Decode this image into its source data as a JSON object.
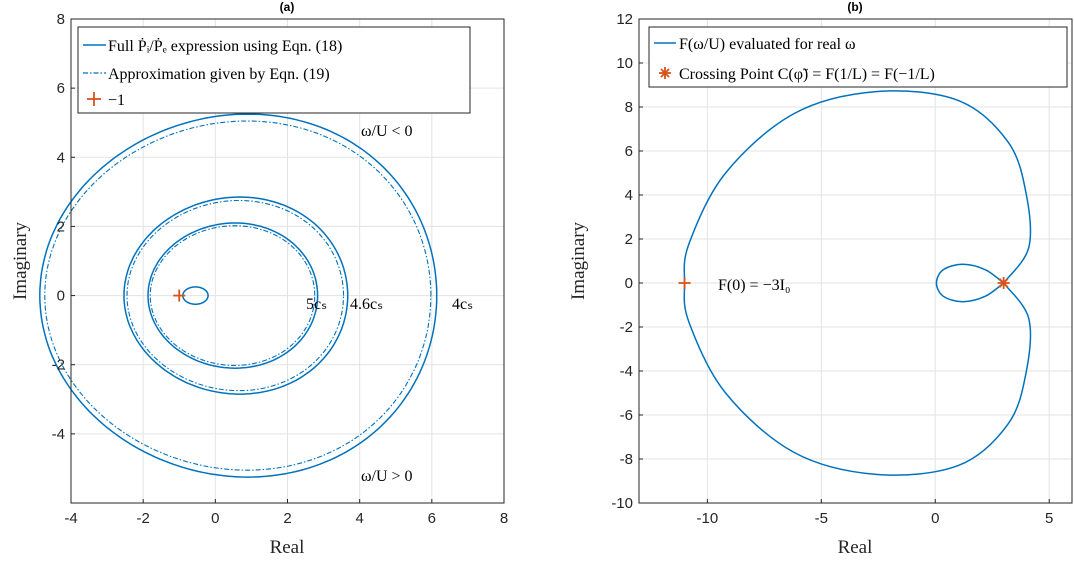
{
  "colors": {
    "curve": "#0072BD",
    "marker": "#D95319"
  },
  "chart_data": [
    {
      "panel_title": "(a)",
      "type": "line",
      "xlabel": "Real",
      "ylabel": "Imaginary",
      "xlim": [
        -4,
        8
      ],
      "ylim": [
        -6,
        8
      ],
      "xticks": [
        "-4",
        "-2",
        "0",
        "2",
        "4",
        "6",
        "8"
      ],
      "yticks": [
        "-4",
        "-2",
        "0",
        "2",
        "4",
        "6",
        "8"
      ],
      "grid": true,
      "legend": {
        "placement": "top-left",
        "entries": [
          "Full Ṗᵢ/Ṗₑ expression using Eqn. (18)",
          "Approximation given by Eqn. (19)",
          "−1"
        ]
      },
      "series": [
        {
          "style": "solid",
          "curves": [
            {
              "center": [
                0.9,
                0
              ],
              "radius_x": 5.5,
              "radius_y": 5.25,
              "shift": 0.6
            },
            {
              "center": [
                0.68,
                0
              ],
              "radius_x": 3.1,
              "radius_y": 2.85,
              "shift": 0.45
            },
            {
              "center": [
                0.55,
                0
              ],
              "radius_x": 2.35,
              "radius_y": 2.1,
              "shift": 0.35
            },
            {
              "center": [
                -0.55,
                0
              ],
              "radius_x": 0.35,
              "radius_y": 0.25,
              "shift": 0.05
            }
          ]
        },
        {
          "style": "dashdot",
          "curves": [
            {
              "center": [
                0.88,
                0
              ],
              "radius_x": 5.35,
              "radius_y": 5.05,
              "shift": 0.6
            },
            {
              "center": [
                0.66,
                0
              ],
              "radius_x": 3.0,
              "radius_y": 2.75,
              "shift": 0.45
            },
            {
              "center": [
                0.54,
                0
              ],
              "radius_x": 2.28,
              "radius_y": 2.02,
              "shift": 0.35
            }
          ]
        }
      ],
      "marker_point": [
        -1,
        0
      ],
      "annotations": [
        {
          "text": "ω/U < 0",
          "x": 4.3,
          "y": 4.8
        },
        {
          "text": "ω/U > 0",
          "x": 4.3,
          "y": -4.8
        },
        {
          "text": "5cₛ",
          "x": 2.5,
          "y": 0
        },
        {
          "text": "4.6cₛ",
          "x": 3.8,
          "y": 0
        },
        {
          "text": "4cₛ",
          "x": 6.6,
          "y": 0
        }
      ]
    },
    {
      "panel_title": "(b)",
      "type": "line",
      "xlabel": "Real",
      "ylabel": "Imaginary",
      "xlim": [
        -13,
        6
      ],
      "ylim": [
        -10,
        12
      ],
      "xticks": [
        "-10",
        "-5",
        "0",
        "5"
      ],
      "yticks": [
        "-10",
        "-8",
        "-6",
        "-4",
        "-2",
        "0",
        "2",
        "4",
        "6",
        "8",
        "10",
        "12"
      ],
      "grid": true,
      "legend": {
        "placement": "top-left",
        "entries": [
          "F(ω/U) evaluated for real ω",
          "Crossing Point C(φ̃) = F(1/L) = F(−1/L)"
        ]
      },
      "curve": {
        "points": [
          [
            3,
            0
          ],
          [
            4.1,
            1.6
          ],
          [
            4.0,
            4.0
          ],
          [
            3.2,
            6.4
          ],
          [
            1.0,
            8.3
          ],
          [
            -2.6,
            8.7
          ],
          [
            -6.2,
            7.7
          ],
          [
            -9.2,
            5.0
          ],
          [
            -10.8,
            1.8
          ],
          [
            -11.0,
            0
          ],
          [
            -10.8,
            -1.8
          ],
          [
            -9.2,
            -5.0
          ],
          [
            -6.2,
            -7.7
          ],
          [
            -2.6,
            -8.7
          ],
          [
            1.0,
            -8.3
          ],
          [
            3.2,
            -6.4
          ],
          [
            4.0,
            -4.0
          ],
          [
            4.1,
            -1.6
          ],
          [
            3,
            0
          ]
        ],
        "inner_loop": [
          [
            3,
            0
          ],
          [
            2.2,
            0.6
          ],
          [
            1.2,
            0.85
          ],
          [
            0.35,
            0.6
          ],
          [
            0.05,
            0
          ],
          [
            0.35,
            -0.6
          ],
          [
            1.2,
            -0.85
          ],
          [
            2.2,
            -0.6
          ],
          [
            3,
            0
          ]
        ]
      },
      "marker_plus": [
        -11,
        0
      ],
      "marker_star": [
        3,
        0
      ],
      "annotations": [
        {
          "text": "F(0) = −3I₀",
          "x": -10.2,
          "y": 0
        }
      ]
    }
  ]
}
